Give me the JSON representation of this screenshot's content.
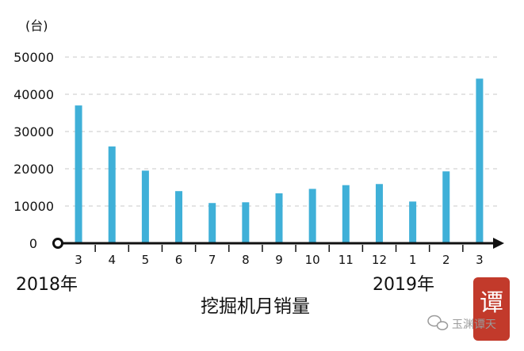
{
  "chart_data": {
    "type": "bar",
    "title": "挖掘机月销量",
    "ylabel": "(台)",
    "xlabel": "",
    "ylim": [
      0,
      50000
    ],
    "yticks": [
      0,
      10000,
      20000,
      30000,
      40000,
      50000
    ],
    "grid": true,
    "categories": [
      "3",
      "4",
      "5",
      "6",
      "7",
      "8",
      "9",
      "10",
      "11",
      "12",
      "1",
      "2",
      "3"
    ],
    "values": [
      37000,
      26000,
      19500,
      14000,
      10800,
      11000,
      13400,
      14600,
      15600,
      15900,
      11200,
      19300,
      44200
    ],
    "year_labels": [
      "2018年",
      "2019年"
    ],
    "bar_color": "#3fb0d8"
  },
  "watermark": {
    "seal_char": "谭",
    "text": "玉渊谭天",
    "icon": "wechat-icon"
  }
}
